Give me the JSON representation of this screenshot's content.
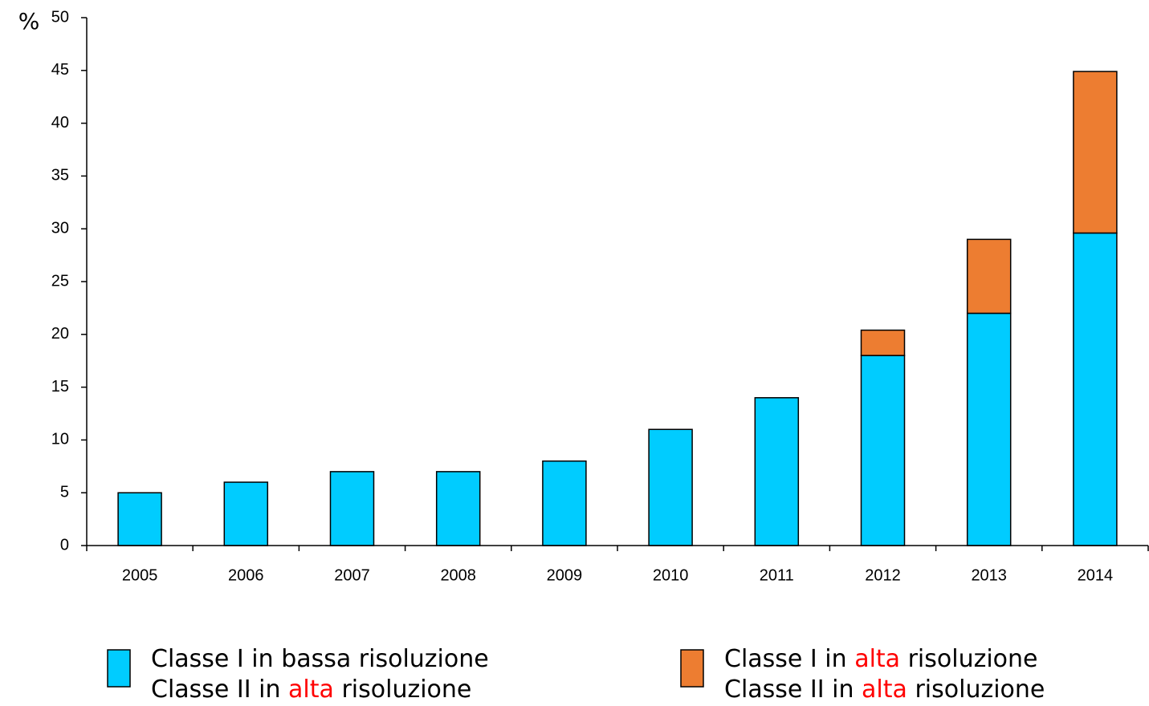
{
  "chart_data": {
    "type": "stacked_bar",
    "y_unit": "%",
    "categories": [
      "2005",
      "2006",
      "2007",
      "2008",
      "2009",
      "2010",
      "2011",
      "2012",
      "2013",
      "2014"
    ],
    "series": [
      {
        "name": [
          "Classe I in bassa risoluzione",
          "Classe II in alta risoluzione"
        ],
        "color": "#00ccff",
        "values": [
          5,
          6,
          7,
          7,
          8,
          11,
          14,
          18,
          22,
          29.6
        ]
      },
      {
        "name": [
          "Classe I in alta risoluzione",
          "Classe II in alta risoluzione"
        ],
        "color": "#ed7d31",
        "values": [
          null,
          null,
          null,
          null,
          null,
          null,
          null,
          2.4,
          7,
          15.3
        ]
      }
    ],
    "legend_highlight": "alta",
    "legend_highlight_color": "#ff0000",
    "ylim": [
      0,
      50
    ],
    "yticks": [
      0,
      5,
      10,
      15,
      20,
      25,
      30,
      35,
      40,
      45,
      50
    ],
    "grid": false
  }
}
